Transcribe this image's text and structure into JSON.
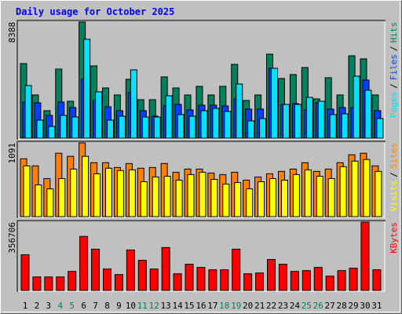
{
  "title": "Daily usage for October 2025",
  "legend_separator": "/",
  "chart_data": [
    {
      "type": "bar",
      "ylim": [
        0,
        8388
      ],
      "yticks": [
        8388
      ],
      "series": [
        {
          "name": "Hits",
          "color": "#00805c",
          "values": [
            5385,
            3118,
            1984,
            4988,
            2664,
            8388,
            5215,
            3627,
            3118,
            4251,
            2777,
            2777,
            4421,
            3627,
            3118,
            3741,
            3118,
            3741,
            5328,
            2721,
            3118,
            6065,
            4308,
            4591,
            5101,
            2834,
            4364,
            3118,
            5951,
            5725,
            3118
          ]
        },
        {
          "name": "Files",
          "color": "#0040ff",
          "values": [
            2607,
            2551,
            1644,
            2607,
            2211,
            4251,
            2721,
            2267,
            1984,
            3288,
            1984,
            1587,
            2324,
            2437,
            2041,
            2381,
            2381,
            2324,
            2834,
            2097,
            2097,
            5045,
            2437,
            2494,
            2041,
            2551,
            2097,
            2211,
            2211,
            4194,
            1984
          ]
        },
        {
          "name": "Pages",
          "color": "#00e0ff",
          "values": [
            3798,
            1304,
            850,
            1644,
            1530,
            7142,
            3344,
            1304,
            1587,
            4931,
            1530,
            1530,
            3061,
            1700,
            1587,
            1984,
            2154,
            1927,
            3911,
            1247,
            1417,
            5045,
            2437,
            2437,
            2947,
            2664,
            1700,
            1757,
            4478,
            3457,
            1417
          ]
        }
      ]
    },
    {
      "type": "bar",
      "ylim": [
        0,
        1091
      ],
      "yticks": [
        1091
      ],
      "series": [
        {
          "name": "Sites",
          "color": "#ff8000",
          "values": [
            856,
            751,
            563,
            938,
            892,
            1091,
            798,
            798,
            727,
            786,
            716,
            727,
            786,
            657,
            704,
            704,
            645,
            622,
            657,
            540,
            587,
            634,
            669,
            704,
            798,
            669,
            704,
            798,
            915,
            938,
            751
          ]
        },
        {
          "name": "Visits",
          "color": "#ffff00",
          "values": [
            751,
            469,
            411,
            563,
            704,
            892,
            634,
            716,
            681,
            692,
            516,
            587,
            598,
            540,
            622,
            657,
            551,
            481,
            505,
            411,
            516,
            563,
            540,
            622,
            692,
            598,
            563,
            739,
            821,
            845,
            669
          ]
        }
      ]
    },
    {
      "type": "bar",
      "ylim": [
        0,
        356706
      ],
      "yticks": [
        356706
      ],
      "categories": [
        "1",
        "2",
        "3",
        "4",
        "5",
        "6",
        "7",
        "8",
        "9",
        "10",
        "11",
        "12",
        "13",
        "14",
        "15",
        "16",
        "17",
        "18",
        "19",
        "20",
        "21",
        "22",
        "23",
        "24",
        "25",
        "26",
        "27",
        "28",
        "29",
        "30",
        "31"
      ],
      "category_colors": [
        "#000000",
        "#000000",
        "#000000",
        "#00805c",
        "#00805c",
        "#000000",
        "#000000",
        "#000000",
        "#000000",
        "#000000",
        "#00805c",
        "#00805c",
        "#000000",
        "#000000",
        "#000000",
        "#000000",
        "#000000",
        "#00805c",
        "#00805c",
        "#000000",
        "#000000",
        "#000000",
        "#000000",
        "#000000",
        "#00805c",
        "#00805c",
        "#000000",
        "#000000",
        "#000000",
        "#000000",
        "#000000"
      ],
      "series": [
        {
          "name": "KBytes",
          "color": "#ff0000",
          "values": [
            186660,
            70516,
            70516,
            70516,
            99552,
            282064,
            215696,
            111996,
            82960,
            211548,
            157624,
            111996,
            223992,
            87108,
            136884,
            120292,
            107848,
            107848,
            215696,
            87108,
            91256,
            161772,
            136884,
            99552,
            103700,
            120292,
            74664,
            103700,
            116144,
            356706,
            107848
          ]
        }
      ]
    }
  ]
}
